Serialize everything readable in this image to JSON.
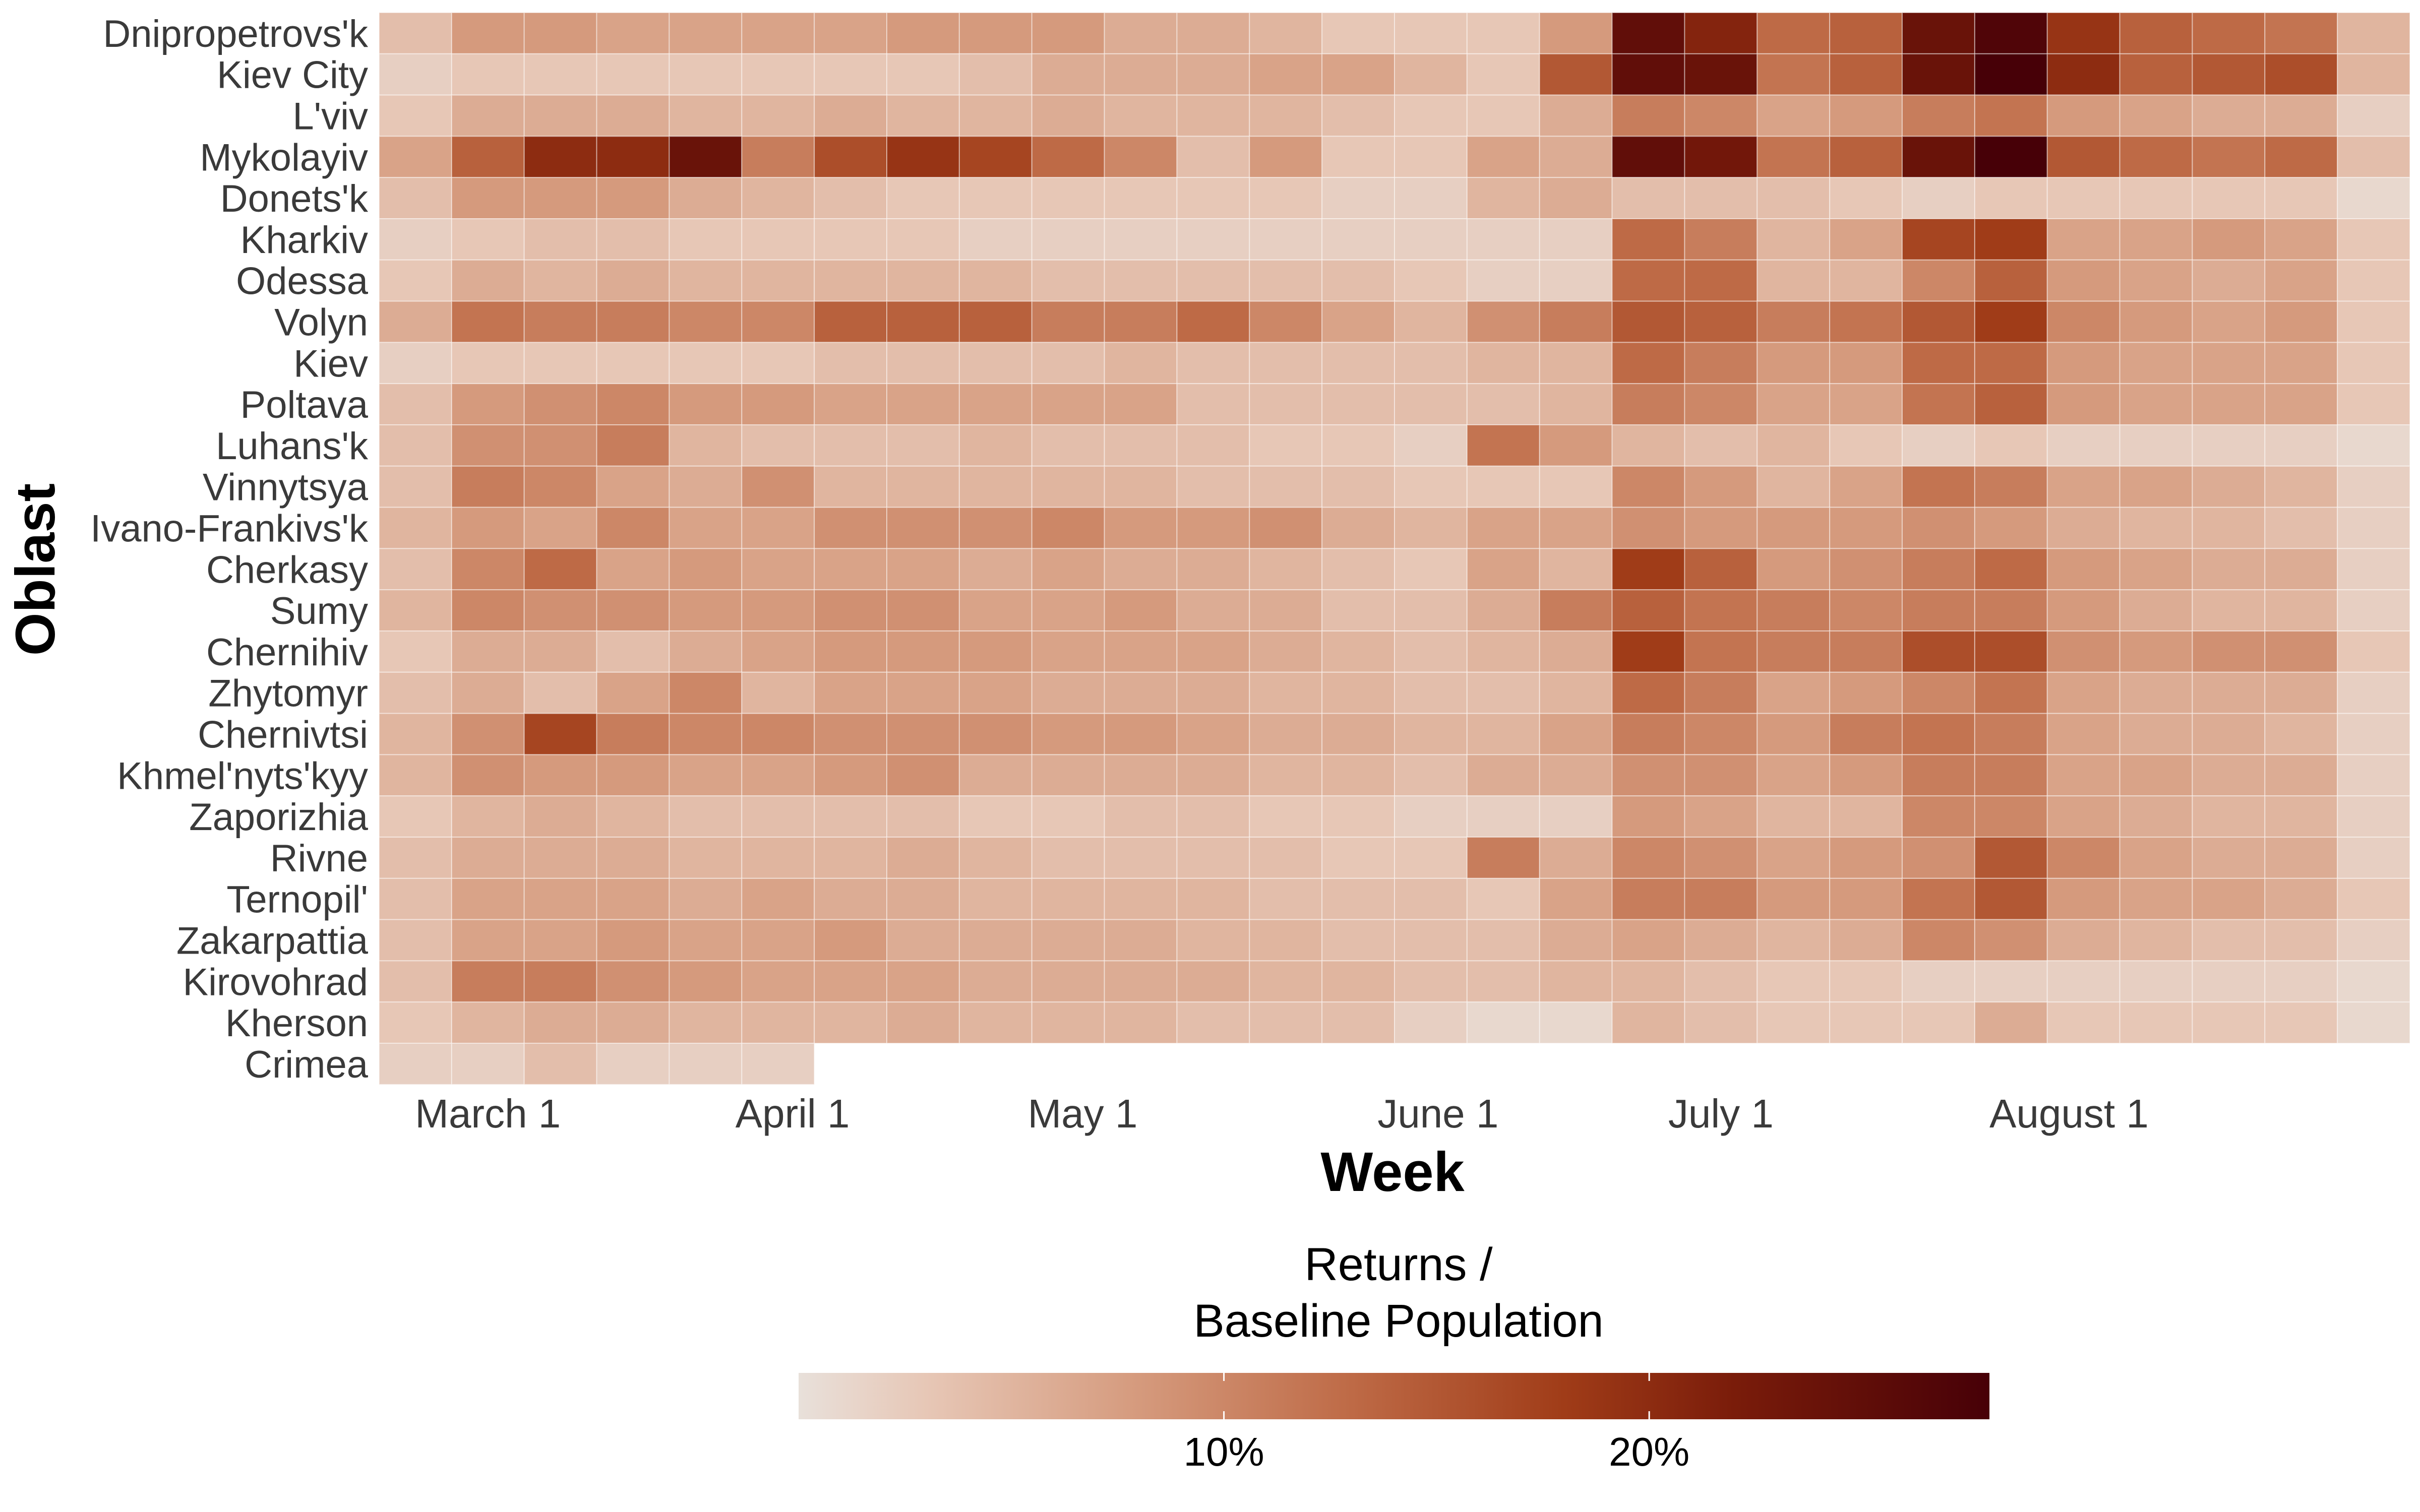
{
  "chart_data": {
    "type": "heatmap",
    "xlabel": "Week",
    "ylabel": "Oblast",
    "x_tick_labels": [
      "March 1",
      "April 1",
      "May 1",
      "June 1",
      "July 1",
      "August 1"
    ],
    "weeks_count": 28,
    "x_tick_week_positions": [
      1.5,
      5.7,
      9.7,
      14.6,
      18.5,
      23.3
    ],
    "rows": [
      "Dnipropetrovs'k",
      "Kiev City",
      "L'viv",
      "Mykolayiv",
      "Donets'k",
      "Kharkiv",
      "Odessa",
      "Volyn",
      "Kiev",
      "Poltava",
      "Luhans'k",
      "Vinnytsya",
      "Ivano-Frankivs'k",
      "Cherkasy",
      "Sumy",
      "Chernihiv",
      "Zhytomyr",
      "Chernivtsi",
      "Khmel'nyts'kyy",
      "Zaporizhia",
      "Rivne",
      "Ternopil'",
      "Zakarpattia",
      "Kirovohrad",
      "Kherson",
      "Crimea"
    ],
    "values": [
      [
        4,
        8,
        8,
        7,
        7,
        7,
        7,
        8,
        8,
        8,
        6,
        6,
        5,
        3,
        3,
        3,
        8,
        25,
        21,
        13,
        14,
        24,
        27,
        19,
        14,
        13,
        12,
        5
      ],
      [
        2,
        3,
        3,
        3,
        3,
        3,
        3,
        3,
        4,
        6,
        6,
        6,
        7,
        7,
        5,
        3,
        15,
        25,
        24,
        12,
        14,
        24,
        29,
        20,
        14,
        15,
        16,
        5
      ],
      [
        3,
        6,
        6,
        6,
        5,
        5,
        6,
        5,
        5,
        6,
        5,
        5,
        5,
        4,
        3,
        3,
        6,
        11,
        10,
        7,
        8,
        11,
        12,
        8,
        7,
        6,
        6,
        2
      ],
      [
        7,
        14,
        20,
        20,
        24,
        11,
        16,
        19,
        17,
        13,
        10,
        4,
        8,
        3,
        3,
        7,
        6,
        25,
        23,
        12,
        14,
        24,
        29,
        15,
        13,
        12,
        13,
        4
      ],
      [
        4,
        8,
        8,
        8,
        6,
        5,
        4,
        3,
        3,
        3,
        3,
        3,
        3,
        2,
        2,
        5,
        6,
        4,
        4,
        4,
        3,
        2,
        3,
        3,
        3,
        3,
        3,
        1
      ],
      [
        2,
        3,
        4,
        4,
        3,
        3,
        3,
        3,
        2,
        2,
        2,
        2,
        2,
        2,
        2,
        2,
        2,
        13,
        11,
        5,
        7,
        17,
        18,
        7,
        7,
        8,
        7,
        3
      ],
      [
        3,
        6,
        5,
        6,
        5,
        5,
        5,
        5,
        5,
        4,
        4,
        4,
        4,
        4,
        3,
        2,
        2,
        13,
        13,
        5,
        5,
        10,
        14,
        8,
        7,
        6,
        7,
        3
      ],
      [
        6,
        12,
        11,
        11,
        10,
        10,
        14,
        14,
        14,
        11,
        11,
        13,
        10,
        7,
        5,
        9,
        11,
        15,
        14,
        11,
        12,
        15,
        18,
        10,
        8,
        7,
        8,
        3
      ],
      [
        2,
        3,
        3,
        3,
        3,
        3,
        4,
        4,
        4,
        4,
        5,
        4,
        4,
        4,
        4,
        5,
        5,
        13,
        11,
        8,
        8,
        13,
        13,
        8,
        7,
        7,
        7,
        3
      ],
      [
        4,
        8,
        9,
        10,
        8,
        8,
        7,
        7,
        7,
        7,
        7,
        4,
        4,
        4,
        4,
        4,
        5,
        11,
        10,
        7,
        7,
        12,
        14,
        8,
        7,
        7,
        7,
        3
      ],
      [
        4,
        9,
        9,
        11,
        5,
        4,
        4,
        4,
        5,
        4,
        4,
        4,
        3,
        3,
        2,
        12,
        8,
        5,
        4,
        5,
        3,
        2,
        3,
        2,
        2,
        2,
        2,
        1
      ],
      [
        4,
        11,
        10,
        7,
        6,
        9,
        5,
        5,
        5,
        5,
        5,
        4,
        4,
        4,
        3,
        3,
        3,
        10,
        8,
        5,
        7,
        12,
        11,
        7,
        7,
        6,
        5,
        2
      ],
      [
        5,
        8,
        7,
        10,
        7,
        7,
        9,
        9,
        9,
        10,
        8,
        8,
        9,
        6,
        5,
        7,
        7,
        9,
        8,
        8,
        8,
        9,
        8,
        6,
        5,
        5,
        4,
        2
      ],
      [
        4,
        10,
        13,
        7,
        8,
        7,
        7,
        7,
        6,
        7,
        6,
        6,
        5,
        4,
        3,
        7,
        5,
        18,
        14,
        8,
        9,
        11,
        13,
        8,
        7,
        6,
        6,
        2
      ],
      [
        5,
        10,
        9,
        9,
        8,
        8,
        9,
        9,
        7,
        7,
        8,
        6,
        6,
        4,
        4,
        6,
        11,
        14,
        12,
        11,
        10,
        11,
        11,
        8,
        6,
        5,
        5,
        2
      ],
      [
        3,
        6,
        6,
        4,
        6,
        7,
        8,
        8,
        8,
        7,
        7,
        7,
        6,
        5,
        4,
        5,
        6,
        18,
        12,
        11,
        11,
        16,
        16,
        9,
        8,
        9,
        9,
        3
      ],
      [
        4,
        6,
        4,
        7,
        10,
        5,
        7,
        7,
        7,
        6,
        6,
        6,
        5,
        5,
        4,
        4,
        5,
        13,
        11,
        7,
        8,
        10,
        12,
        7,
        6,
        6,
        6,
        2
      ],
      [
        5,
        9,
        17,
        11,
        10,
        10,
        9,
        9,
        9,
        8,
        8,
        7,
        6,
        6,
        5,
        5,
        7,
        11,
        10,
        8,
        11,
        12,
        11,
        7,
        6,
        6,
        5,
        2
      ],
      [
        5,
        9,
        8,
        8,
        7,
        7,
        8,
        9,
        6,
        6,
        6,
        6,
        5,
        5,
        4,
        6,
        6,
        9,
        9,
        7,
        8,
        11,
        11,
        7,
        7,
        6,
        6,
        2
      ],
      [
        3,
        5,
        6,
        5,
        4,
        4,
        4,
        4,
        3,
        3,
        4,
        4,
        3,
        3,
        2,
        2,
        2,
        8,
        7,
        5,
        5,
        10,
        10,
        7,
        6,
        5,
        5,
        2
      ],
      [
        4,
        6,
        6,
        6,
        5,
        5,
        5,
        6,
        5,
        4,
        4,
        4,
        4,
        3,
        3,
        11,
        6,
        10,
        9,
        7,
        8,
        9,
        15,
        10,
        7,
        6,
        6,
        2
      ],
      [
        4,
        7,
        7,
        7,
        6,
        7,
        6,
        6,
        5,
        5,
        5,
        5,
        4,
        4,
        4,
        3,
        7,
        11,
        11,
        8,
        8,
        12,
        15,
        8,
        7,
        7,
        6,
        3
      ],
      [
        4,
        7,
        7,
        8,
        7,
        7,
        8,
        6,
        6,
        6,
        6,
        5,
        5,
        4,
        4,
        4,
        6,
        7,
        6,
        5,
        6,
        10,
        9,
        6,
        5,
        4,
        4,
        2
      ],
      [
        4,
        11,
        11,
        9,
        8,
        7,
        7,
        7,
        6,
        6,
        6,
        6,
        5,
        5,
        4,
        4,
        5,
        5,
        4,
        3,
        3,
        2,
        2,
        2,
        2,
        2,
        2,
        1
      ],
      [
        3,
        5,
        6,
        6,
        5,
        5,
        5,
        6,
        5,
        5,
        5,
        4,
        4,
        4,
        2,
        1,
        1,
        5,
        4,
        3,
        3,
        3,
        6,
        3,
        3,
        3,
        3,
        1
      ],
      [
        2,
        2,
        4,
        2,
        2,
        2,
        null,
        null,
        null,
        null,
        null,
        null,
        null,
        null,
        null,
        null,
        null,
        null,
        null,
        null,
        null,
        null,
        null,
        null,
        null,
        null,
        null,
        null
      ]
    ],
    "scale": {
      "min": 0,
      "max": 28,
      "stops": [
        {
          "v": 0,
          "color": "#E8E0DA"
        },
        {
          "v": 3,
          "color": "#E7C7B6"
        },
        {
          "v": 8,
          "color": "#D59A7D"
        },
        {
          "v": 13,
          "color": "#BE6A46"
        },
        {
          "v": 18,
          "color": "#A03C18"
        },
        {
          "v": 22,
          "color": "#7A1C0A"
        },
        {
          "v": 28,
          "color": "#470007"
        }
      ]
    },
    "legend": {
      "title_line1": "Returns /",
      "title_line2": "Baseline Population",
      "ticks": [
        {
          "v": 10,
          "label": "10%"
        },
        {
          "v": 20,
          "label": "20%"
        }
      ],
      "placement": "bottom"
    }
  }
}
